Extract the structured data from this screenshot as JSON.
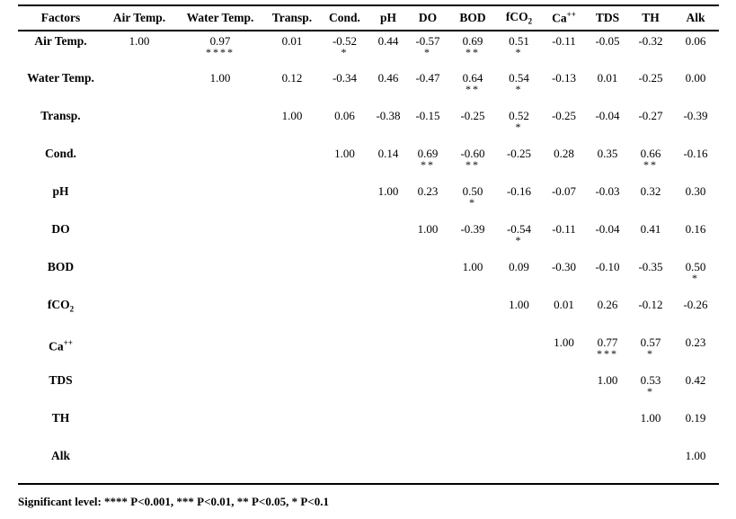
{
  "table": {
    "headers": [
      {
        "text": "Factors"
      },
      {
        "text": "Air Temp."
      },
      {
        "text": "Water Temp."
      },
      {
        "text": "Transp."
      },
      {
        "text": "Cond."
      },
      {
        "text": "pH"
      },
      {
        "text": "DO"
      },
      {
        "text": "BOD"
      },
      {
        "text": "fCO",
        "sub": "2"
      },
      {
        "text": "Ca",
        "sup": "++"
      },
      {
        "text": "TDS"
      },
      {
        "text": "TH"
      },
      {
        "text": "Alk"
      }
    ],
    "rows": [
      {
        "factor": {
          "text": "Air Temp."
        },
        "cells": [
          {
            "v": "1.00"
          },
          {
            "v": "0.97",
            "s": "****"
          },
          {
            "v": "0.01"
          },
          {
            "v": "-0.52",
            "s": "*"
          },
          {
            "v": "0.44"
          },
          {
            "v": "-0.57",
            "s": "*"
          },
          {
            "v": "0.69",
            "s": "**"
          },
          {
            "v": "0.51",
            "s": "*"
          },
          {
            "v": "-0.11"
          },
          {
            "v": "-0.05"
          },
          {
            "v": "-0.32"
          },
          {
            "v": "0.06"
          }
        ]
      },
      {
        "factor": {
          "text": "Water Temp."
        },
        "cells": [
          {},
          {
            "v": "1.00"
          },
          {
            "v": "0.12"
          },
          {
            "v": "-0.34"
          },
          {
            "v": "0.46"
          },
          {
            "v": "-0.47"
          },
          {
            "v": "0.64",
            "s": "**"
          },
          {
            "v": "0.54",
            "s": "*"
          },
          {
            "v": "-0.13"
          },
          {
            "v": "0.01"
          },
          {
            "v": "-0.25"
          },
          {
            "v": "0.00"
          }
        ]
      },
      {
        "factor": {
          "text": "Transp."
        },
        "cells": [
          {},
          {},
          {
            "v": "1.00"
          },
          {
            "v": "0.06"
          },
          {
            "v": "-0.38"
          },
          {
            "v": "-0.15"
          },
          {
            "v": "-0.25"
          },
          {
            "v": "0.52",
            "s": "*"
          },
          {
            "v": "-0.25"
          },
          {
            "v": "-0.04"
          },
          {
            "v": "-0.27"
          },
          {
            "v": "-0.39"
          }
        ]
      },
      {
        "factor": {
          "text": "Cond."
        },
        "cells": [
          {},
          {},
          {},
          {
            "v": "1.00"
          },
          {
            "v": "0.14"
          },
          {
            "v": "0.69",
            "s": "**"
          },
          {
            "v": "-0.60",
            "s": "**"
          },
          {
            "v": "-0.25"
          },
          {
            "v": "0.28"
          },
          {
            "v": "0.35"
          },
          {
            "v": "0.66",
            "s": "**"
          },
          {
            "v": "-0.16"
          }
        ]
      },
      {
        "factor": {
          "text": "pH"
        },
        "cells": [
          {},
          {},
          {},
          {},
          {
            "v": "1.00"
          },
          {
            "v": "0.23"
          },
          {
            "v": "0.50",
            "s": "*"
          },
          {
            "v": "-0.16"
          },
          {
            "v": "-0.07"
          },
          {
            "v": "-0.03"
          },
          {
            "v": "0.32"
          },
          {
            "v": "0.30"
          }
        ]
      },
      {
        "factor": {
          "text": "DO"
        },
        "cells": [
          {},
          {},
          {},
          {},
          {},
          {
            "v": "1.00"
          },
          {
            "v": "-0.39"
          },
          {
            "v": "-0.54",
            "s": "*"
          },
          {
            "v": "-0.11"
          },
          {
            "v": "-0.04"
          },
          {
            "v": "0.41"
          },
          {
            "v": "0.16"
          }
        ]
      },
      {
        "factor": {
          "text": "BOD"
        },
        "cells": [
          {},
          {},
          {},
          {},
          {},
          {},
          {
            "v": "1.00"
          },
          {
            "v": "0.09"
          },
          {
            "v": "-0.30"
          },
          {
            "v": "-0.10"
          },
          {
            "v": "-0.35"
          },
          {
            "v": "0.50",
            "s": "*"
          }
        ]
      },
      {
        "factor": {
          "text": "fCO",
          "sub": "2"
        },
        "cells": [
          {},
          {},
          {},
          {},
          {},
          {},
          {},
          {
            "v": "1.00"
          },
          {
            "v": "0.01"
          },
          {
            "v": "0.26"
          },
          {
            "v": "-0.12"
          },
          {
            "v": "-0.26"
          }
        ]
      },
      {
        "factor": {
          "text": "Ca",
          "sup": "++"
        },
        "cells": [
          {},
          {},
          {},
          {},
          {},
          {},
          {},
          {},
          {
            "v": "1.00"
          },
          {
            "v": "0.77",
            "s": "***"
          },
          {
            "v": "0.57",
            "s": "*"
          },
          {
            "v": "0.23"
          }
        ]
      },
      {
        "factor": {
          "text": "TDS"
        },
        "cells": [
          {},
          {},
          {},
          {},
          {},
          {},
          {},
          {},
          {},
          {
            "v": "1.00"
          },
          {
            "v": "0.53",
            "s": "*"
          },
          {
            "v": "0.42"
          }
        ]
      },
      {
        "factor": {
          "text": "TH"
        },
        "cells": [
          {},
          {},
          {},
          {},
          {},
          {},
          {},
          {},
          {},
          {},
          {
            "v": "1.00"
          },
          {
            "v": "0.19"
          }
        ]
      },
      {
        "factor": {
          "text": "Alk"
        },
        "cells": [
          {},
          {},
          {},
          {},
          {},
          {},
          {},
          {},
          {},
          {},
          {},
          {
            "v": "1.00"
          }
        ]
      }
    ]
  },
  "footer": {
    "text": "Significant level: **** P<0.001, *** P<0.01, ** P<0.05, * P<0.1"
  }
}
